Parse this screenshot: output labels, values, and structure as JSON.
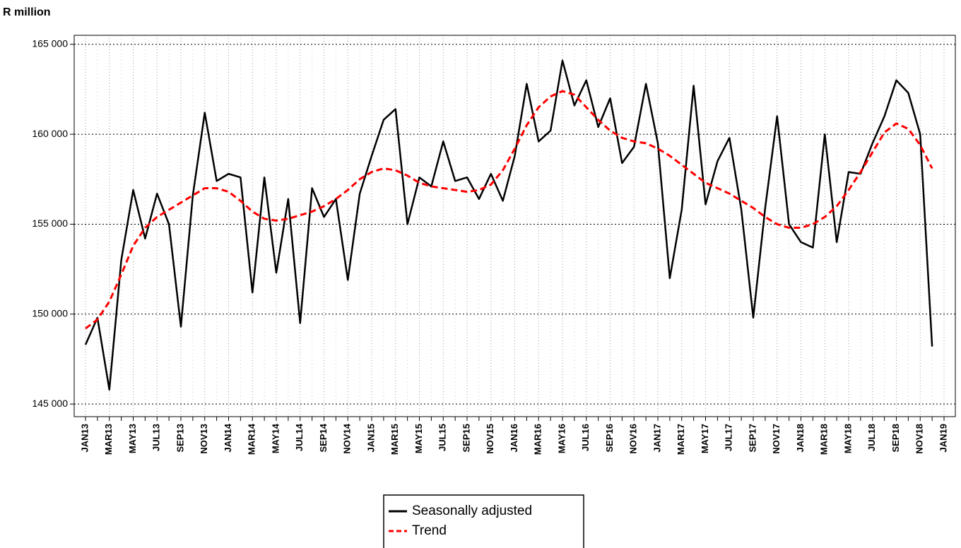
{
  "chart_data": {
    "type": "line",
    "y_label": "R million",
    "categories": [
      "JAN13",
      null,
      "MAR13",
      null,
      "MAY13",
      null,
      "JUL13",
      null,
      "SEP13",
      null,
      "NOV13",
      null,
      "JAN14",
      null,
      "MAR14",
      null,
      "MAY14",
      null,
      "JUL14",
      null,
      "SEP14",
      null,
      "NOV14",
      null,
      "JAN15",
      null,
      "MAR15",
      null,
      "MAY15",
      null,
      "JUL15",
      null,
      "SEP15",
      null,
      "NOV15",
      null,
      "JAN16",
      null,
      "MAR16",
      null,
      "MAY16",
      null,
      "JUL16",
      null,
      "SEP16",
      null,
      "NOV16",
      null,
      "JAN17",
      null,
      "MAR17",
      null,
      "MAY17",
      null,
      "JUL17",
      null,
      "SEP17",
      null,
      "NOV17",
      null,
      "JAN18",
      null,
      "MAR18",
      null,
      "MAY18",
      null,
      "JUL18",
      null,
      "SEP18",
      null,
      "NOV18",
      null,
      "JAN19"
    ],
    "series": [
      {
        "name": "Seasonally adjusted",
        "color": "#000000",
        "style": "solid",
        "values": [
          148300,
          149800,
          145800,
          153000,
          156900,
          154200,
          156700,
          155000,
          149300,
          156600,
          161200,
          157400,
          157800,
          157600,
          151200,
          157600,
          152300,
          156400,
          149500,
          157000,
          155400,
          156400,
          151900,
          156700,
          158800,
          160800,
          161400,
          155000,
          157600,
          157100,
          159600,
          157400,
          157600,
          156400,
          157800,
          156300,
          158800,
          162800,
          159600,
          160200,
          164100,
          161600,
          163000,
          160400,
          162000,
          158400,
          159300,
          162800,
          159500,
          152000,
          155800,
          162700,
          156100,
          158500,
          159800,
          155800,
          149800,
          155900,
          161000,
          155000,
          154000,
          153700,
          160000,
          154000,
          157900,
          157800,
          159500,
          161000,
          163000,
          162300,
          160000,
          148200,
          null
        ]
      },
      {
        "name": "Trend",
        "color": "#ff0000",
        "style": "dashed",
        "values": [
          149200,
          149700,
          150700,
          152200,
          153800,
          154800,
          155400,
          155800,
          156200,
          156600,
          157000,
          157000,
          156800,
          156300,
          155700,
          155300,
          155200,
          155300,
          155500,
          155700,
          156000,
          156400,
          156900,
          157500,
          157900,
          158100,
          158000,
          157700,
          157300,
          157100,
          157000,
          156900,
          156800,
          156900,
          157200,
          158000,
          159200,
          160500,
          161500,
          162100,
          162400,
          162200,
          161500,
          160800,
          160200,
          159800,
          159600,
          159500,
          159200,
          158800,
          158300,
          157800,
          157300,
          157000,
          156700,
          156300,
          155900,
          155400,
          155000,
          154800,
          154800,
          155000,
          155400,
          156000,
          156900,
          157900,
          159000,
          160100,
          160600,
          160300,
          159400,
          158100,
          null
        ]
      }
    ],
    "ylim": [
      144300,
      165500
    ],
    "yticks": [
      {
        "value": 145000,
        "label": "145 000"
      },
      {
        "value": 150000,
        "label": "150 000"
      },
      {
        "value": 155000,
        "label": "155 000"
      },
      {
        "value": 160000,
        "label": "160 000"
      },
      {
        "value": 165000,
        "label": "165 000"
      }
    ],
    "grid": true,
    "legend": "bottom"
  }
}
